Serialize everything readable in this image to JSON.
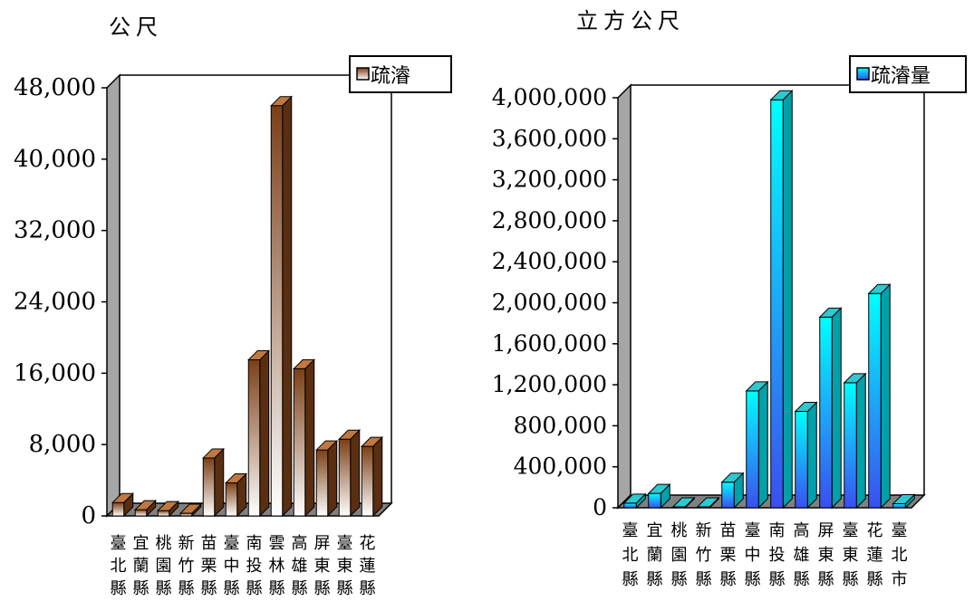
{
  "chart_data": [
    {
      "type": "bar",
      "unit_label": "公尺",
      "legend": "疏濬",
      "legend_position": "top-right",
      "ylim": [
        0,
        48000
      ],
      "yticks": [
        "0",
        "8,000",
        "16,000",
        "24,000",
        "32,000",
        "40,000",
        "48,000"
      ],
      "ytick_values": [
        0,
        8000,
        16000,
        24000,
        32000,
        40000,
        48000
      ],
      "categories": [
        "臺北縣",
        "宜蘭縣",
        "桃園縣",
        "新竹縣",
        "苗栗縣",
        "臺中縣",
        "南投縣",
        "雲林縣",
        "高雄縣",
        "屏東縣",
        "臺東縣",
        "花蓮縣"
      ],
      "series": [
        {
          "name": "疏濬",
          "values": [
            1500,
            700,
            600,
            300,
            6500,
            3700,
            17500,
            46000,
            16500,
            7400,
            8600,
            7800
          ]
        }
      ],
      "colors": {
        "light": "#ffffff",
        "dark": "#7b3f17",
        "top": "#c07840",
        "side": "#5a2e10",
        "wall": "#a6a6a6",
        "floor": "#808080"
      }
    },
    {
      "type": "bar",
      "unit_label": "立方公尺",
      "legend": "疏濬量",
      "legend_position": "top-right",
      "ylim": [
        0,
        4000000
      ],
      "yticks": [
        "0",
        "400,000",
        "800,000",
        "1,200,000",
        "1,600,000",
        "2,000,000",
        "2,400,000",
        "2,800,000",
        "3,200,000",
        "3,600,000",
        "4,000,000"
      ],
      "ytick_values": [
        0,
        400000,
        800000,
        1200000,
        1600000,
        2000000,
        2400000,
        2800000,
        3200000,
        3600000,
        4000000
      ],
      "categories": [
        "臺北縣",
        "宜蘭縣",
        "桃園縣",
        "新竹縣",
        "苗栗縣",
        "臺中縣",
        "南投縣",
        "高雄縣",
        "屏東縣",
        "臺東縣",
        "花蓮縣",
        "臺北市"
      ],
      "series": [
        {
          "name": "疏濬量",
          "values": [
            45000,
            140000,
            0,
            0,
            250000,
            1140000,
            3980000,
            940000,
            1860000,
            1220000,
            2090000,
            40000
          ]
        }
      ],
      "colors": {
        "light": "#00ffff",
        "dark": "#3a4ff0",
        "top": "#2ec8d0",
        "side": "#00a0a8",
        "wall": "#a6a6a6",
        "floor": "#808080"
      }
    }
  ]
}
